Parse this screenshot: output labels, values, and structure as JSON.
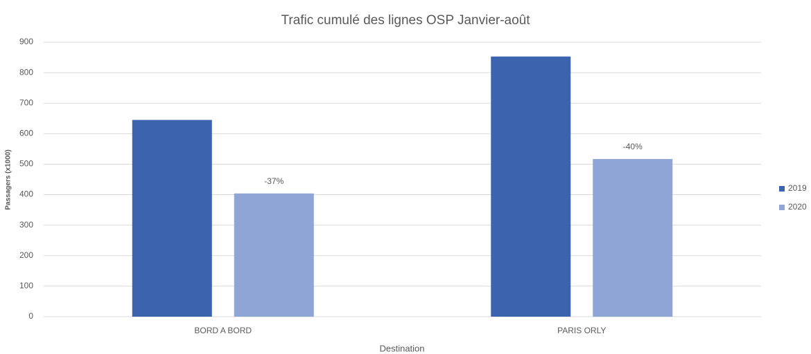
{
  "chart_data": {
    "type": "bar",
    "title": "Trafic cumulé des lignes OSP Janvier-août",
    "x_label": "Destination",
    "y_label": "Passagers (x1000)",
    "categories": [
      "BORD A BORD",
      "PARIS ORLY"
    ],
    "series": [
      {
        "name": "2019",
        "color": "#3c64ae",
        "values": [
          645,
          853
        ]
      },
      {
        "name": "2020",
        "color": "#8fa5d6",
        "values": [
          404,
          517
        ],
        "annotations": [
          "-37%",
          "-40%"
        ]
      }
    ],
    "ylim": [
      0,
      900
    ],
    "yticks": [
      0,
      100,
      200,
      300,
      400,
      500,
      600,
      700,
      800,
      900
    ],
    "grid": true,
    "legend": "right"
  }
}
